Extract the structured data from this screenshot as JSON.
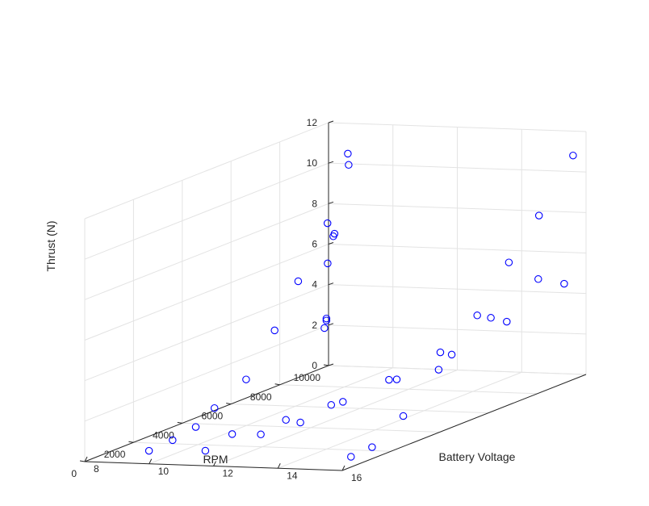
{
  "colors": {
    "background": "#ffffff",
    "marker": "#0000ff",
    "axis": "#262626",
    "grid": "#e3e3e3"
  },
  "chart_data": {
    "type": "scatter",
    "subtype": "scatter3",
    "marker": "circle",
    "xlabel": "Battery Voltage",
    "ylabel": "RPM",
    "zlabel": "Thrust (N)",
    "xlim": [
      8,
      16
    ],
    "ylim": [
      0,
      10000
    ],
    "zlim": [
      0,
      12
    ],
    "xticks": [
      8,
      10,
      12,
      14,
      16
    ],
    "yticks": [
      0,
      2000,
      4000,
      6000,
      8000,
      10000
    ],
    "zticks": [
      0,
      2,
      4,
      6,
      8,
      10,
      12
    ],
    "xticklabels": [
      "8",
      "10",
      "12",
      "14",
      "16"
    ],
    "yticklabels": [
      "0",
      "2000",
      "4000",
      "6000",
      "8000",
      "10000"
    ],
    "zticklabels": [
      "0",
      "2",
      "4",
      "6",
      "8",
      "10",
      "12"
    ],
    "grid": true,
    "view": "3-D (azimuth -37.5, elevation 30)",
    "points": [
      {
        "voltage": 9.2,
        "rpm": 1050,
        "thrust": 0.1
      },
      {
        "voltage": 10.8,
        "rpm": 2350,
        "thrust": 0.4
      },
      {
        "voltage": 11.6,
        "rpm": 3500,
        "thrust": 0.6
      },
      {
        "voltage": 12.4,
        "rpm": 4300,
        "thrust": 1.0
      },
      {
        "voltage": 13.3,
        "rpm": 5800,
        "thrust": 1.6
      },
      {
        "voltage": 14.1,
        "rpm": 7000,
        "thrust": 2.3
      },
      {
        "voltage": 14.9,
        "rpm": 8200,
        "thrust": 3.4
      },
      {
        "voltage": 15.7,
        "rpm": 9500,
        "thrust": 4.7
      },
      {
        "voltage": 10.8,
        "rpm": 1250,
        "thrust": 0.1
      },
      {
        "voltage": 11.5,
        "rpm": 2600,
        "thrust": 0.3
      },
      {
        "voltage": 12.2,
        "rpm": 3300,
        "thrust": 0.6
      },
      {
        "voltage": 12.8,
        "rpm": 4250,
        "thrust": 1.2
      },
      {
        "voltage": 13.4,
        "rpm": 5350,
        "thrust": 1.8
      },
      {
        "voltage": 14.2,
        "rpm": 6400,
        "thrust": 2.7
      },
      {
        "voltage": 14.9,
        "rpm": 7550,
        "thrust": 3.9
      },
      {
        "voltage": 15.5,
        "rpm": 8700,
        "thrust": 5.3
      },
      {
        "voltage": 15.4,
        "rpm": 1150,
        "thrust": 0.1
      },
      {
        "voltage": 15.6,
        "rpm": 1750,
        "thrust": 0.3
      },
      {
        "voltage": 15.7,
        "rpm": 2900,
        "thrust": 1.3
      },
      {
        "voltage": 15.7,
        "rpm": 4350,
        "thrust": 2.9
      },
      {
        "voltage": 15.8,
        "rpm": 5800,
        "thrust": 4.9
      },
      {
        "voltage": 15.8,
        "rpm": 7100,
        "thrust": 6.9
      },
      {
        "voltage": 15.9,
        "rpm": 8200,
        "thrust": 8.7
      },
      {
        "voltage": 15.9,
        "rpm": 9600,
        "thrust": 11.0
      },
      {
        "voltage": 9.1,
        "rpm": 2150,
        "thrust": 0.1
      },
      {
        "voltage": 9.1,
        "rpm": 3100,
        "thrust": 0.3
      },
      {
        "voltage": 9.0,
        "rpm": 4000,
        "thrust": 0.8
      },
      {
        "voltage": 9.0,
        "rpm": 5300,
        "thrust": 1.6
      },
      {
        "voltage": 8.9,
        "rpm": 6600,
        "thrust": 3.4
      },
      {
        "voltage": 8.8,
        "rpm": 7700,
        "thrust": 5.3
      },
      {
        "voltage": 8.8,
        "rpm": 8900,
        "thrust": 7.6
      },
      {
        "voltage": 8.7,
        "rpm": 9900,
        "thrust": 10.0
      },
      {
        "voltage": 8.6,
        "rpm": 10000,
        "thrust": 10.5
      },
      {
        "voltage": 8.3,
        "rpm": 9800,
        "thrust": 6.5
      },
      {
        "voltage": 8.3,
        "rpm": 9850,
        "thrust": 6.6
      },
      {
        "voltage": 8.2,
        "rpm": 9700,
        "thrust": 5.2
      },
      {
        "voltage": 8.2,
        "rpm": 9650,
        "thrust": 2.4
      },
      {
        "voltage": 8.2,
        "rpm": 9650,
        "thrust": 2.5
      },
      {
        "voltage": 8.1,
        "rpm": 9700,
        "thrust": 2.0
      }
    ]
  }
}
